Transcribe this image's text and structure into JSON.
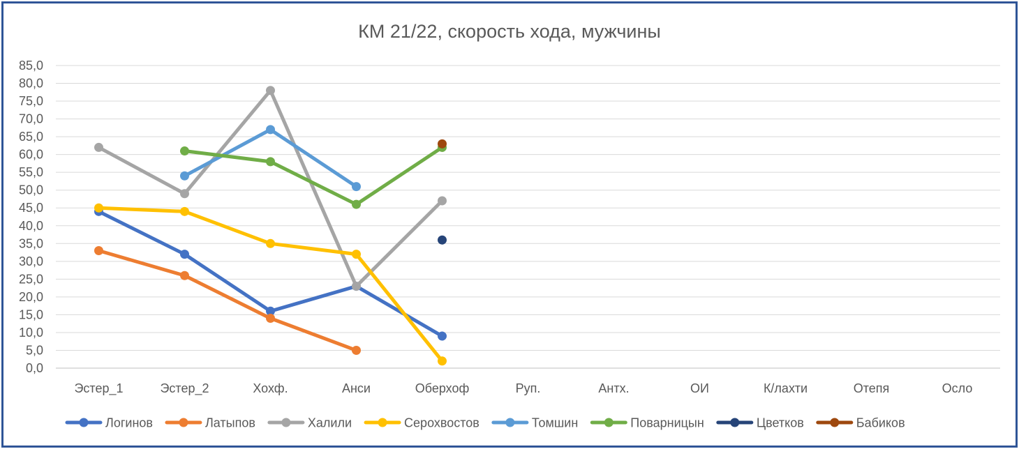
{
  "chart_data": {
    "type": "line",
    "title": "КМ 21/22, скорость хода, мужчины",
    "xlabel": "",
    "ylabel": "",
    "categories": [
      "Эстер_1",
      "Эстер_2",
      "Хохф.",
      "Анси",
      "Оберхоф",
      "Руп.",
      "Антх.",
      "ОИ",
      "К/лахти",
      "Отепя",
      "Осло"
    ],
    "ylim": [
      0,
      85
    ],
    "y_ticks": [
      "0,0",
      "5,0",
      "10,0",
      "15,0",
      "20,0",
      "25,0",
      "30,0",
      "35,0",
      "40,0",
      "45,0",
      "50,0",
      "55,0",
      "60,0",
      "65,0",
      "70,0",
      "75,0",
      "80,0",
      "85,0"
    ],
    "grid": true,
    "legend_position": "bottom",
    "series": [
      {
        "name": "Логинов",
        "color": "#4472c4",
        "values": [
          44,
          32,
          16,
          23,
          9,
          null,
          null,
          null,
          null,
          null,
          null
        ]
      },
      {
        "name": "Латыпов",
        "color": "#ed7d31",
        "values": [
          33,
          26,
          14,
          5,
          null,
          null,
          null,
          null,
          null,
          null,
          null
        ]
      },
      {
        "name": "Халили",
        "color": "#a5a5a5",
        "values": [
          62,
          49,
          78,
          23,
          47,
          null,
          null,
          null,
          null,
          null,
          null
        ]
      },
      {
        "name": "Серохвостов",
        "color": "#ffc000",
        "values": [
          45,
          44,
          35,
          32,
          2,
          null,
          null,
          null,
          null,
          null,
          null
        ]
      },
      {
        "name": "Томшин",
        "color": "#5b9bd5",
        "values": [
          null,
          54,
          67,
          51,
          null,
          null,
          null,
          null,
          null,
          null,
          null
        ]
      },
      {
        "name": "Поварницын",
        "color": "#70ad47",
        "values": [
          null,
          61,
          58,
          46,
          62,
          null,
          null,
          null,
          null,
          null,
          null
        ]
      },
      {
        "name": "Цветков",
        "color": "#264478",
        "values": [
          null,
          null,
          null,
          null,
          36,
          null,
          null,
          null,
          null,
          null,
          null
        ]
      },
      {
        "name": "Бабиков",
        "color": "#9e480e",
        "values": [
          null,
          null,
          null,
          null,
          63,
          null,
          null,
          null,
          null,
          null,
          null
        ]
      }
    ]
  }
}
